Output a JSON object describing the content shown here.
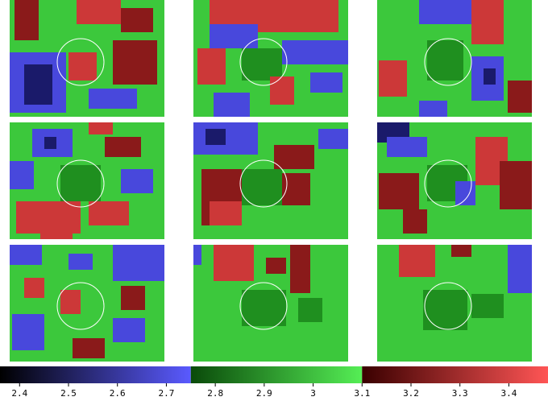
{
  "chart_data": {
    "type": "colorbar",
    "xlim": [
      2.36,
      3.48
    ],
    "xticks": [
      2.4,
      2.5,
      2.6,
      2.7,
      2.8,
      2.9,
      3,
      3.1,
      3.2,
      3.3,
      3.4
    ],
    "segments": [
      {
        "range": [
          2.36,
          2.75
        ],
        "colors": [
          "#000000",
          "#5a5aff"
        ]
      },
      {
        "range": [
          2.75,
          3.1
        ],
        "colors": [
          "#0a4a0a",
          "#55ee55"
        ]
      },
      {
        "range": [
          3.1,
          3.48
        ],
        "colors": [
          "#3a0000",
          "#ff5555"
        ]
      }
    ]
  }
}
